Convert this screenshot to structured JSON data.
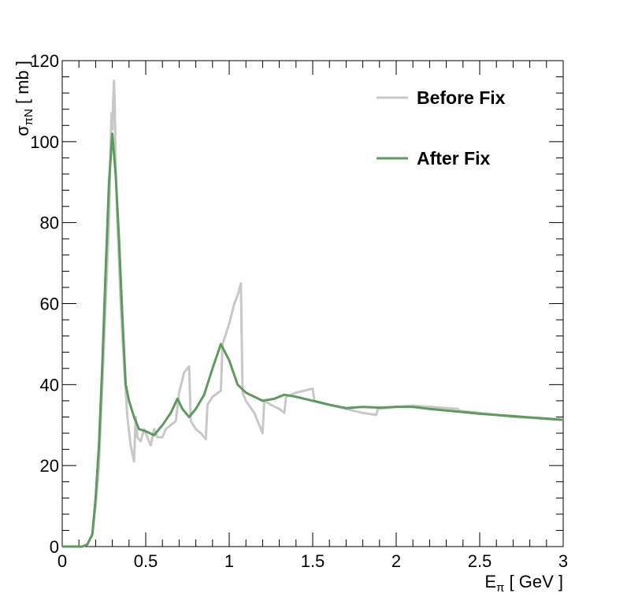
{
  "chart_data": {
    "type": "line",
    "xlim": [
      0,
      3
    ],
    "ylim": [
      0,
      120
    ],
    "x_ticks": [
      0,
      0.5,
      1,
      1.5,
      2,
      2.5,
      3
    ],
    "x_tick_labels": [
      "0",
      "0.5",
      "1",
      "1.5",
      "2",
      "2.5",
      "3"
    ],
    "y_ticks": [
      0,
      20,
      40,
      60,
      80,
      100,
      120
    ],
    "y_tick_labels": [
      "0",
      "20",
      "40",
      "60",
      "80",
      "100",
      "120"
    ],
    "xlabel": {
      "main": "E",
      "sub": "π",
      "unit": "  [ GeV ]"
    },
    "ylabel": {
      "main": "σ",
      "sub": "πN",
      "unit": "  [ mb ]"
    },
    "grid": false,
    "legend_position": "top-right",
    "series": [
      {
        "name": "Before Fix",
        "color": "#c8c8c8",
        "x": [
          0,
          0.12,
          0.15,
          0.18,
          0.2,
          0.22,
          0.24,
          0.26,
          0.28,
          0.29,
          0.295,
          0.3,
          0.305,
          0.31,
          0.315,
          0.32,
          0.33,
          0.35,
          0.37,
          0.39,
          0.41,
          0.43,
          0.44,
          0.45,
          0.47,
          0.49,
          0.51,
          0.53,
          0.55,
          0.57,
          0.6,
          0.62,
          0.65,
          0.68,
          0.7,
          0.73,
          0.76,
          0.77,
          0.8,
          0.83,
          0.86,
          0.87,
          0.9,
          0.95,
          0.96,
          1.0,
          1.03,
          1.05,
          1.07,
          1.08,
          1.1,
          1.15,
          1.2,
          1.21,
          1.25,
          1.3,
          1.33,
          1.34,
          1.4,
          1.5,
          1.51,
          1.6,
          1.7,
          1.8,
          1.88,
          1.89,
          2.0,
          2.1,
          2.2,
          2.37,
          2.38,
          2.5,
          2.6,
          2.7,
          2.8,
          2.9,
          3.0
        ],
        "y": [
          0,
          0,
          0.5,
          3,
          10,
          20,
          40,
          60,
          80,
          100,
          107,
          103,
          110,
          115,
          108,
          95,
          80,
          60,
          45,
          32,
          25,
          21,
          32,
          27,
          26,
          29,
          27,
          25,
          29,
          27,
          27,
          29,
          30,
          31,
          38,
          43,
          44.5,
          31,
          29,
          28,
          26.5,
          35,
          37,
          38.5,
          50,
          55,
          60,
          62,
          65,
          38,
          36,
          33,
          28,
          36,
          35,
          34,
          33,
          37,
          38,
          39,
          36,
          35,
          34,
          33,
          32.5,
          34,
          34.5,
          34.8,
          34.5,
          34,
          33.5,
          33,
          32.5,
          32,
          31.8,
          31.5,
          31.3
        ]
      },
      {
        "name": "After Fix",
        "color": "#5d9b5d",
        "x": [
          0,
          0.12,
          0.15,
          0.18,
          0.2,
          0.22,
          0.24,
          0.26,
          0.28,
          0.3,
          0.32,
          0.34,
          0.36,
          0.38,
          0.4,
          0.43,
          0.46,
          0.5,
          0.55,
          0.6,
          0.65,
          0.69,
          0.72,
          0.76,
          0.8,
          0.85,
          0.9,
          0.95,
          1.0,
          1.05,
          1.1,
          1.2,
          1.27,
          1.33,
          1.4,
          1.5,
          1.6,
          1.7,
          1.8,
          1.9,
          2.0,
          2.1,
          2.2,
          2.3,
          2.4,
          2.5,
          2.6,
          2.7,
          2.8,
          2.9,
          3.0
        ],
        "y": [
          0,
          0,
          0.5,
          3,
          12,
          25,
          45,
          68,
          90,
          102,
          92,
          76,
          57,
          40,
          36,
          32,
          29,
          28.5,
          27.5,
          30,
          33,
          36.5,
          34,
          32,
          34,
          37.5,
          44,
          50,
          46,
          40,
          38,
          36,
          36.5,
          37.5,
          37,
          36,
          35,
          34.2,
          34.5,
          34.3,
          34.5,
          34.5,
          34,
          33.6,
          33.2,
          32.8,
          32.5,
          32.2,
          31.9,
          31.6,
          31.3
        ]
      }
    ]
  }
}
